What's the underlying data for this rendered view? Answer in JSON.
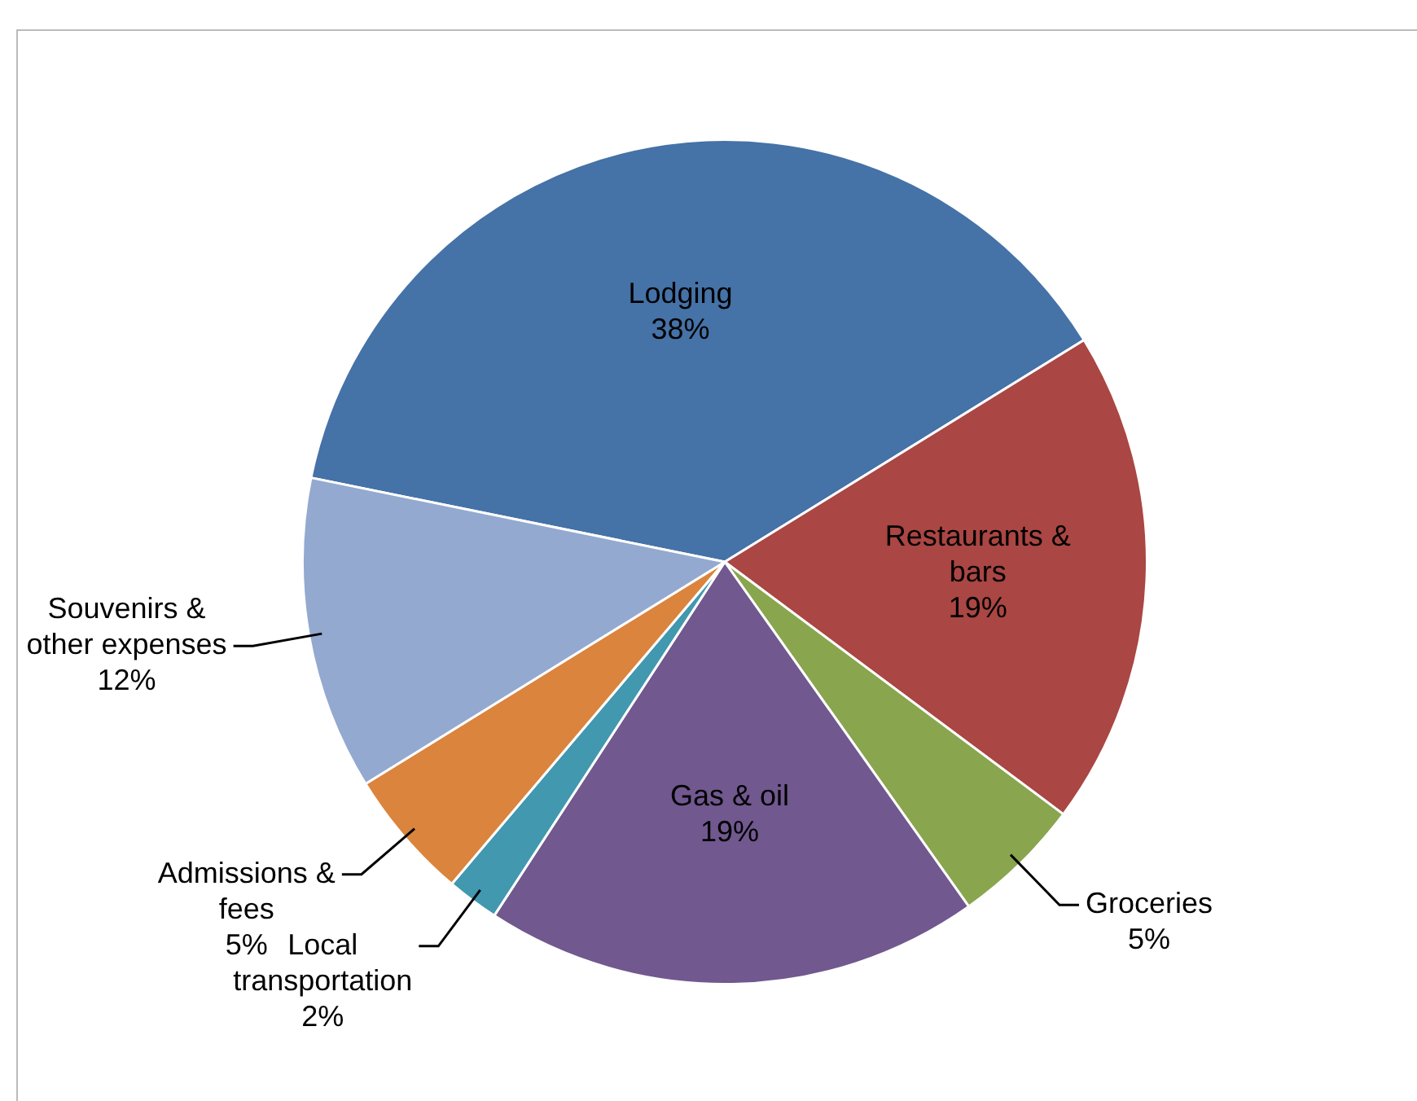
{
  "chart_data": {
    "type": "pie",
    "categories": [
      "Lodging",
      "Restaurants & bars",
      "Groceries",
      "Gas & oil",
      "Local transportation",
      "Admissions & fees",
      "Souvenirs & other expenses"
    ],
    "values": [
      38,
      19,
      5,
      19,
      2,
      5,
      12
    ],
    "value_labels": [
      "38%",
      "19%",
      "5%",
      "19%",
      "2%",
      "5%",
      "12%"
    ],
    "colors": [
      "#4572a7",
      "#aa4643",
      "#89a54e",
      "#71588f",
      "#4198af",
      "#db843d",
      "#93a9cf"
    ],
    "legend": false
  }
}
